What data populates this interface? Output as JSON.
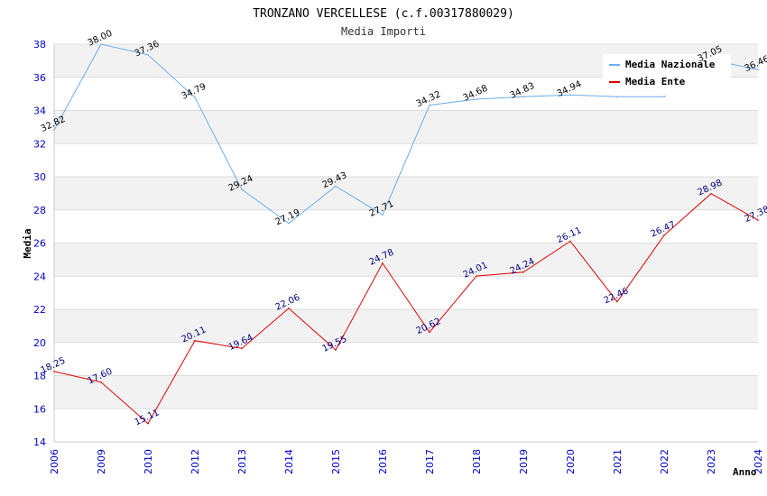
{
  "chart_data": {
    "type": "line",
    "title": "TRONZANO VERCELLESE (c.f.00317880029)",
    "subtitle": "Media Importi",
    "xlabel": "Anno",
    "ylabel": "Media",
    "ylim": [
      14,
      38
    ],
    "yticks": [
      14,
      16,
      18,
      20,
      22,
      24,
      26,
      28,
      30,
      32,
      34,
      36,
      38
    ],
    "categories": [
      "2006",
      "2009",
      "2010",
      "2012",
      "2013",
      "2014",
      "2015",
      "2016",
      "2017",
      "2018",
      "2019",
      "2020",
      "2021",
      "2022",
      "2023",
      "2024"
    ],
    "series": [
      {
        "name": "Media Nazionale",
        "color": "#6aaee8",
        "values": [
          32.82,
          38.0,
          37.36,
          34.79,
          29.24,
          27.19,
          29.43,
          27.71,
          34.32,
          34.68,
          34.83,
          34.94,
          34.83,
          34.83,
          37.05,
          36.46
        ],
        "labels": [
          "32.82",
          "38.00",
          "37.36",
          "34.79",
          "29.24",
          "27.19",
          "29.43",
          "27.71",
          "34.32",
          "34.68",
          "34.83",
          "34.94",
          "",
          "",
          "37.05",
          "36.46"
        ]
      },
      {
        "name": "Media Ente",
        "color": "#dd0000",
        "values": [
          18.25,
          17.6,
          15.11,
          20.11,
          19.64,
          22.06,
          19.55,
          24.78,
          20.62,
          24.01,
          24.24,
          26.11,
          22.46,
          26.47,
          28.98,
          27.38
        ],
        "labels": [
          "18.25",
          "17.60",
          "15.11",
          "20.11",
          "19.64",
          "22.06",
          "19.55",
          "24.78",
          "20.62",
          "24.01",
          "24.24",
          "26.11",
          "22.46",
          "26.47",
          "28.98",
          "27.38"
        ]
      }
    ],
    "legend_position": "top-right",
    "grid": true
  }
}
